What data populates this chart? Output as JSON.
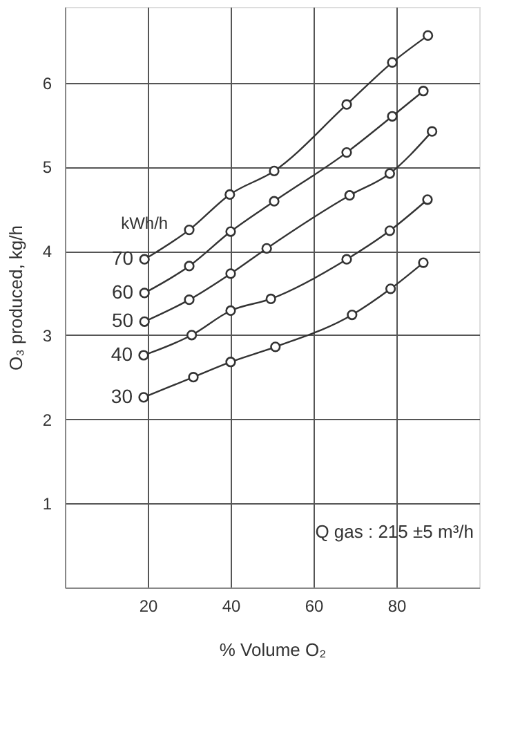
{
  "chart_data": {
    "type": "line",
    "xlabel": "% Volume O₂",
    "ylabel": "O₃ produced, kg/h",
    "legend_title": "kWh/h",
    "annotations": [
      "Q gas : 215 ±5 m³/h"
    ],
    "xlim": [
      0,
      100
    ],
    "ylim": [
      0,
      6.9
    ],
    "xticks": [
      20,
      40,
      60,
      80
    ],
    "yticks": [
      1,
      2,
      3,
      4,
      5,
      6
    ],
    "grid": true,
    "marker": "circle",
    "line_style": "solid",
    "series": [
      {
        "name": "70",
        "color": "#333333",
        "x": [
          19.2,
          30,
          39.8,
          50.5,
          68,
          79,
          87.6
        ],
        "values": [
          3.9,
          4.25,
          4.67,
          4.95,
          5.74,
          6.24,
          6.56
        ]
      },
      {
        "name": "60",
        "color": "#333333",
        "x": [
          19.2,
          30,
          40,
          50.5,
          68,
          79,
          86.5
        ],
        "values": [
          3.5,
          3.82,
          4.23,
          4.59,
          5.17,
          5.6,
          5.9
        ]
      },
      {
        "name": "50",
        "color": "#333333",
        "x": [
          19.2,
          30,
          40,
          48.7,
          68.7,
          78.4,
          88.6
        ],
        "values": [
          3.16,
          3.42,
          3.73,
          4.03,
          4.66,
          4.92,
          5.42
        ]
      },
      {
        "name": "40",
        "color": "#333333",
        "x": [
          19,
          30.6,
          40,
          49.7,
          68,
          78.4,
          87.5
        ],
        "values": [
          2.76,
          3.0,
          3.29,
          3.43,
          3.9,
          4.24,
          4.61
        ]
      },
      {
        "name": "30",
        "color": "#333333",
        "x": [
          19,
          31,
          40,
          50.8,
          69.3,
          78.6,
          86.5
        ],
        "values": [
          2.26,
          2.5,
          2.68,
          2.86,
          3.24,
          3.55,
          3.86
        ]
      }
    ]
  }
}
